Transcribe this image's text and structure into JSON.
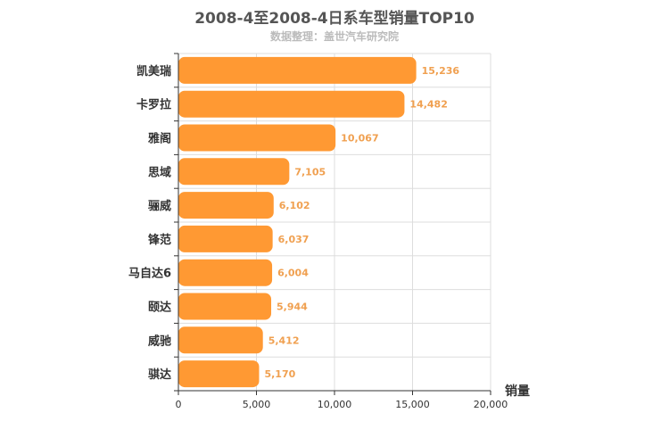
{
  "chart_data": {
    "type": "bar",
    "orientation": "horizontal",
    "title": "2008-4至2008-4日系车型销量TOP10",
    "subtitle": "数据整理：盖世汽车研究院",
    "categories": [
      "凯美瑞",
      "卡罗拉",
      "雅阁",
      "思域",
      "骊威",
      "锋范",
      "马自达6",
      "颐达",
      "威驰",
      "骐达"
    ],
    "values": [
      15236,
      14482,
      10067,
      7105,
      6102,
      6037,
      6004,
      5944,
      5412,
      5170
    ],
    "value_labels": [
      "15,236",
      "14,482",
      "10,067",
      "7,105",
      "6,102",
      "6,037",
      "6,004",
      "5,944",
      "5,412",
      "5,170"
    ],
    "xlabel": "销量",
    "xlim": [
      0,
      20000
    ],
    "xticks": [
      0,
      5000,
      10000,
      15000,
      20000
    ],
    "xtick_labels": [
      "0",
      "5,000",
      "10,000",
      "15,000",
      "20,000"
    ],
    "grid": true,
    "bar_color": "#ff9933"
  }
}
